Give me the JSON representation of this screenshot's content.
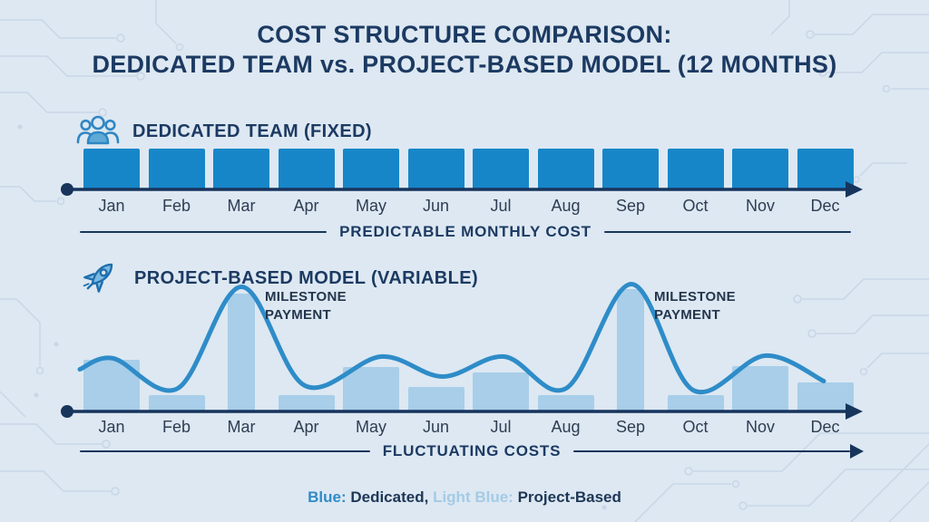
{
  "title": {
    "line1": "COST STRUCTURE COMPARISON:",
    "line2": "DEDICATED TEAM vs. PROJECT-BASED MODEL (12 MONTHS)"
  },
  "colors": {
    "background": "#dde8f2",
    "navy": "#1e3756",
    "axis": "#17345c",
    "dedicated_bar": "#1786c8",
    "project_bar": "#a8cee9",
    "curve": "#2e8cc8",
    "project_light": "#a4cbe6",
    "circuit_trace": "#c6d5e5"
  },
  "legend": {
    "blue_label": "Blue:",
    "dedicated_text": "Dedicated,",
    "lightblue_label": "Light Blue:",
    "project_text": "Project-Based"
  },
  "chart_data": [
    {
      "id": "dedicated-team",
      "type": "bar",
      "title": "DEDICATED TEAM (FIXED)",
      "icon": "team-icon",
      "categories": [
        "Jan",
        "Feb",
        "Mar",
        "Apr",
        "May",
        "Jun",
        "Jul",
        "Aug",
        "Sep",
        "Oct",
        "Nov",
        "Dec"
      ],
      "values": [
        1,
        1,
        1,
        1,
        1,
        1,
        1,
        1,
        1,
        1,
        1,
        1
      ],
      "value_note": "equal fixed monthly cost, no numeric axis shown",
      "axis_caption": "PREDICTABLE MONTHLY COST",
      "legend_entry": "Blue: Dedicated"
    },
    {
      "id": "project-based",
      "type": "bar+line",
      "title": "PROJECT-BASED MODEL (VARIABLE)",
      "icon": "rocket-icon",
      "categories": [
        "Jan",
        "Feb",
        "Mar",
        "Apr",
        "May",
        "Jun",
        "Jul",
        "Aug",
        "Sep",
        "Oct",
        "Nov",
        "Dec"
      ],
      "bar_values": [
        57,
        18,
        130,
        18,
        49,
        27,
        43,
        18,
        135,
        18,
        50,
        32
      ],
      "milestone_months": [
        "Mar",
        "Sep"
      ],
      "annotations": [
        {
          "text": "MILESTONE PAYMENT",
          "month": "Mar"
        },
        {
          "text": "MILESTONE PAYMENT",
          "month": "Sep"
        }
      ],
      "line_profile": [
        [
          88,
          46
        ],
        [
          125,
          58
        ],
        [
          196,
          25
        ],
        [
          266,
          137
        ],
        [
          336,
          28
        ],
        [
          420,
          60
        ],
        [
          488,
          38
        ],
        [
          556,
          60
        ],
        [
          624,
          25
        ],
        [
          696,
          140
        ],
        [
          764,
          23
        ],
        [
          843,
          61
        ],
        [
          908,
          33
        ]
      ],
      "value_note": "relative fluctuating cost heights estimated from drawing, peaks at milestone payments (Mar, Sep); no numeric axis shown",
      "axis_caption": "FLUCTUATING COSTS",
      "legend_entry": "Light Blue: Project-Based"
    }
  ]
}
